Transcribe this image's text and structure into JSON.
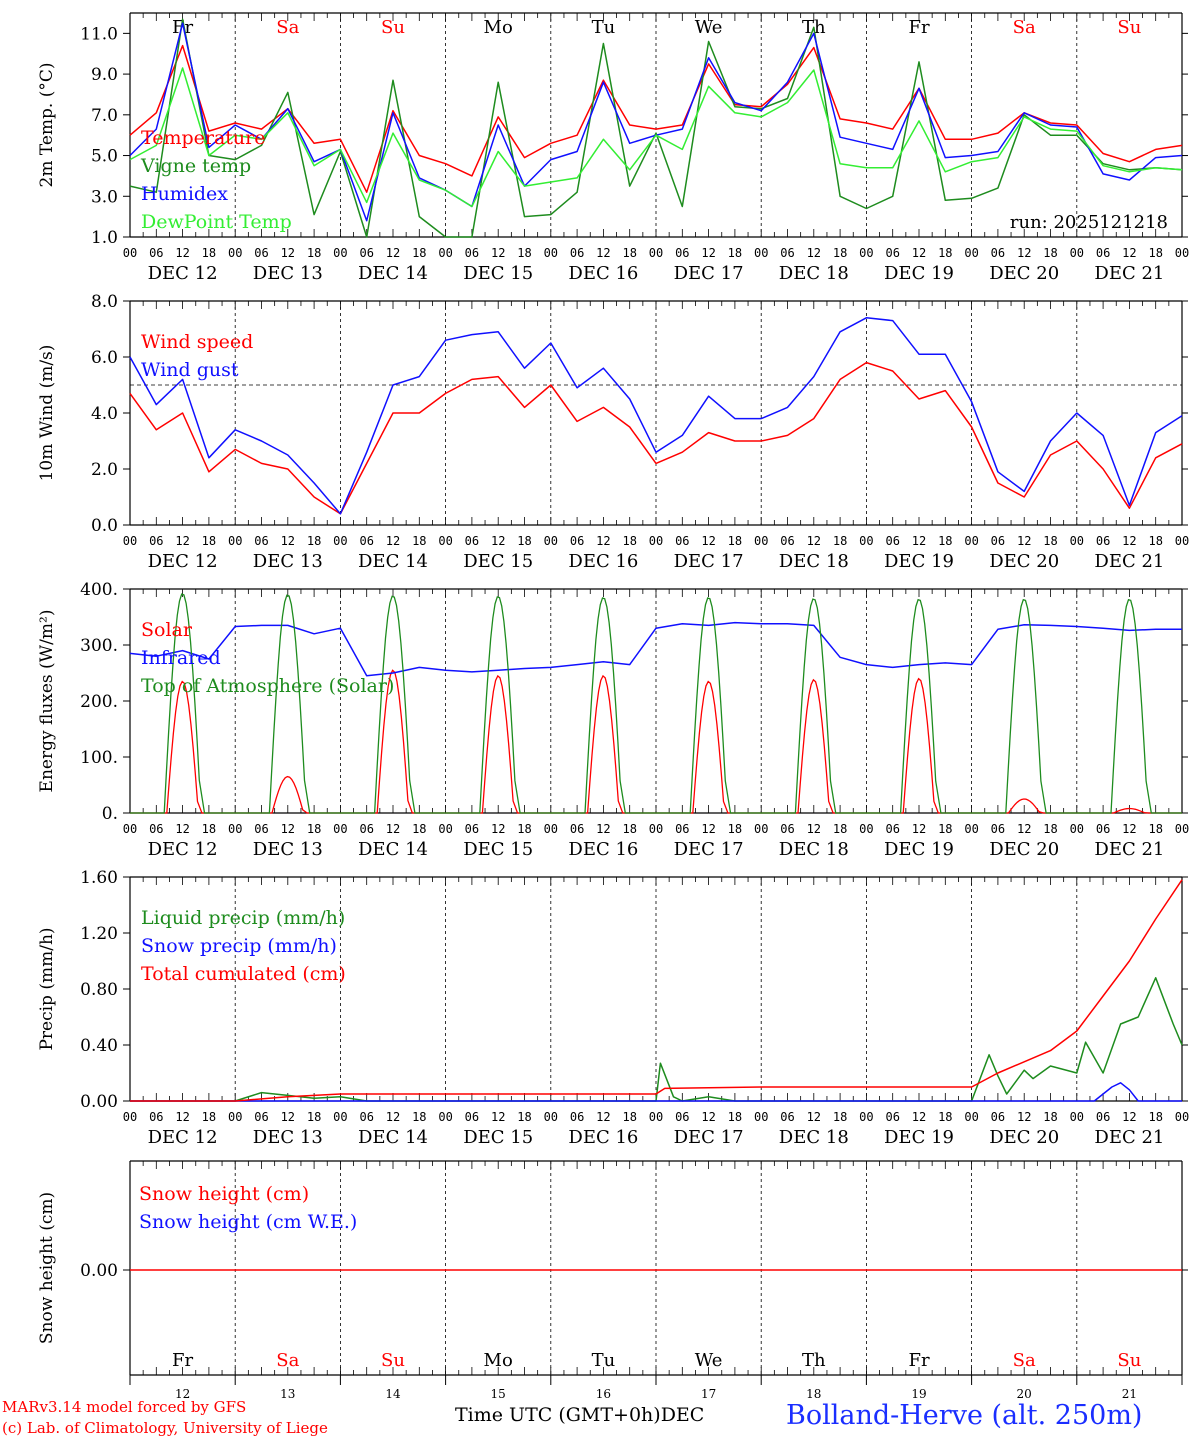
{
  "days": {
    "weekdays": [
      "Fr",
      "Sa",
      "Su",
      "Mo",
      "Tu",
      "We",
      "Th",
      "Fr",
      "Sa",
      "Su"
    ],
    "weekend": [
      false,
      true,
      true,
      false,
      false,
      false,
      false,
      false,
      true,
      true
    ],
    "dates": [
      "DEC 12",
      "DEC 13",
      "DEC 14",
      "DEC 15",
      "DEC 16",
      "DEC 17",
      "DEC 18",
      "DEC 19",
      "DEC 20",
      "DEC 21"
    ],
    "day_numbers": [
      "12",
      "13",
      "14",
      "15",
      "16",
      "17",
      "18",
      "19",
      "20",
      "21"
    ],
    "hour_ticks": [
      "00",
      "06",
      "12",
      "18"
    ],
    "final_hour": "00"
  },
  "colors": {
    "red": "#ff0000",
    "green": "#1e8c1e",
    "blue": "#1010ff",
    "lightgreen": "#33ee33",
    "text": "#000000"
  },
  "footer": {
    "credit_line1": "MARv3.14 model forced by GFS",
    "credit_line2": "(c) Lab. of Climatology, University of Liege",
    "time_label": "Time UTC (GMT+0h)",
    "month": "DEC",
    "station": "Bolland-Herve (alt. 250m)"
  },
  "chart_data": [
    {
      "type": "line",
      "ylabel": "2m Temp. (°C)",
      "ylim": [
        1.0,
        12.0
      ],
      "yticks": [
        "1.0",
        "3.0",
        "5.0",
        "7.0",
        "9.0",
        "11.0"
      ],
      "run_label": "run: 2025121218",
      "x_units": "hours from DEC 12 00 UTC",
      "series": [
        {
          "name": "Temperature",
          "color": "red",
          "x": [
            0,
            6,
            12,
            18,
            24,
            30,
            36,
            42,
            48,
            54,
            60,
            66,
            72,
            78,
            84,
            90,
            96,
            102,
            108,
            114,
            120,
            126,
            132,
            138,
            144,
            150,
            156,
            162,
            168,
            174,
            180,
            186,
            192,
            198,
            204,
            210,
            216,
            222,
            228,
            234,
            240
          ],
          "y": [
            6.0,
            7.1,
            10.4,
            6.2,
            6.6,
            6.3,
            7.3,
            5.6,
            5.8,
            3.2,
            7.2,
            5.0,
            4.6,
            4.0,
            6.9,
            4.9,
            5.6,
            6.0,
            8.7,
            6.5,
            6.3,
            6.5,
            9.5,
            7.5,
            7.4,
            8.5,
            10.3,
            6.8,
            6.6,
            6.3,
            8.3,
            5.8,
            5.8,
            6.1,
            7.1,
            6.6,
            6.5,
            5.1,
            4.7,
            5.3,
            5.5
          ]
        },
        {
          "name": "Vigne temp",
          "color": "green",
          "x": [
            0,
            6,
            12,
            18,
            24,
            30,
            36,
            42,
            48,
            54,
            60,
            66,
            72,
            78,
            84,
            90,
            96,
            102,
            108,
            114,
            120,
            126,
            132,
            138,
            144,
            150,
            156,
            162,
            168,
            174,
            180,
            186,
            192,
            198,
            204,
            210,
            216,
            222,
            228,
            234,
            240
          ],
          "y": [
            3.5,
            3.2,
            11.7,
            5.0,
            4.8,
            5.5,
            8.1,
            2.1,
            5.2,
            0.3,
            8.7,
            2.0,
            0.9,
            0.5,
            8.6,
            2.0,
            2.1,
            3.2,
            10.5,
            3.5,
            6.1,
            2.5,
            10.6,
            7.4,
            7.3,
            7.8,
            11.3,
            3.0,
            2.4,
            3.0,
            9.6,
            2.8,
            2.9,
            3.4,
            7.0,
            6.0,
            6.0,
            4.6,
            4.3,
            4.4,
            4.3
          ]
        },
        {
          "name": "Humidex",
          "color": "blue",
          "x": [
            0,
            6,
            12,
            18,
            24,
            30,
            36,
            42,
            48,
            54,
            60,
            66,
            72,
            78,
            84,
            90,
            96,
            102,
            108,
            114,
            120,
            126,
            132,
            138,
            144,
            150,
            156,
            162,
            168,
            174,
            180,
            186,
            192,
            198,
            204,
            210,
            216,
            222,
            228,
            234,
            240
          ],
          "y": [
            5.0,
            6.3,
            11.5,
            5.4,
            6.5,
            5.8,
            7.3,
            4.7,
            5.3,
            1.8,
            7.1,
            3.9,
            3.3,
            2.5,
            6.5,
            3.5,
            4.8,
            5.2,
            8.6,
            5.6,
            6.0,
            6.3,
            9.8,
            7.6,
            7.2,
            8.6,
            11.0,
            5.9,
            5.6,
            5.3,
            8.3,
            4.9,
            5.0,
            5.2,
            7.1,
            6.5,
            6.4,
            4.1,
            3.8,
            4.9,
            5.0
          ]
        },
        {
          "name": "DewPoint Temp",
          "color": "lightgreen",
          "x": [
            0,
            6,
            12,
            18,
            24,
            30,
            36,
            42,
            48,
            54,
            60,
            66,
            72,
            78,
            84,
            90,
            96,
            102,
            108,
            114,
            120,
            126,
            132,
            138,
            144,
            150,
            156,
            162,
            168,
            174,
            180,
            186,
            192,
            198,
            204,
            210,
            216,
            222,
            228,
            234,
            240
          ],
          "y": [
            4.8,
            5.5,
            9.3,
            5.0,
            6.0,
            5.8,
            7.1,
            4.5,
            5.3,
            2.7,
            6.1,
            3.8,
            3.3,
            2.5,
            5.2,
            3.5,
            3.7,
            3.9,
            5.8,
            4.3,
            6.0,
            5.3,
            8.4,
            7.1,
            6.9,
            7.6,
            9.2,
            4.6,
            4.4,
            4.4,
            6.7,
            4.2,
            4.7,
            4.9,
            6.9,
            6.3,
            6.2,
            4.5,
            4.2,
            4.4,
            4.3
          ]
        }
      ]
    },
    {
      "type": "line",
      "ylabel": "10m Wind (m/s)",
      "ylim": [
        0.0,
        8.0
      ],
      "yticks": [
        "0.0",
        "2.0",
        "4.0",
        "6.0",
        "8.0"
      ],
      "reference_line": 5.0,
      "series": [
        {
          "name": "Wind speed",
          "color": "red",
          "x": [
            0,
            6,
            12,
            18,
            24,
            30,
            36,
            42,
            48,
            54,
            60,
            66,
            72,
            78,
            84,
            90,
            96,
            102,
            108,
            114,
            120,
            126,
            132,
            138,
            144,
            150,
            156,
            162,
            168,
            174,
            180,
            186,
            192,
            198,
            204,
            210,
            216,
            222,
            228,
            234,
            240
          ],
          "y": [
            4.7,
            3.4,
            4.0,
            1.9,
            2.7,
            2.2,
            2.0,
            1.0,
            0.4,
            2.2,
            4.0,
            4.0,
            4.7,
            5.2,
            5.3,
            4.2,
            5.0,
            3.7,
            4.2,
            3.5,
            2.2,
            2.6,
            3.3,
            3.0,
            3.0,
            3.2,
            3.8,
            5.2,
            5.8,
            5.5,
            4.5,
            4.8,
            3.5,
            1.5,
            1.0,
            2.5,
            3.0,
            2.0,
            0.6,
            2.4,
            2.9
          ]
        },
        {
          "name": "Wind gust",
          "color": "blue",
          "x": [
            0,
            6,
            12,
            18,
            24,
            30,
            36,
            42,
            48,
            54,
            60,
            66,
            72,
            78,
            84,
            90,
            96,
            102,
            108,
            114,
            120,
            126,
            132,
            138,
            144,
            150,
            156,
            162,
            168,
            174,
            180,
            186,
            192,
            198,
            204,
            210,
            216,
            222,
            228,
            234,
            240
          ],
          "y": [
            6.0,
            4.3,
            5.2,
            2.4,
            3.4,
            3.0,
            2.5,
            1.5,
            0.4,
            2.6,
            5.0,
            5.3,
            6.6,
            6.8,
            6.9,
            5.6,
            6.5,
            4.9,
            5.6,
            4.5,
            2.6,
            3.2,
            4.6,
            3.8,
            3.8,
            4.2,
            5.3,
            6.9,
            7.4,
            7.3,
            6.1,
            6.1,
            4.4,
            1.9,
            1.2,
            3.0,
            4.0,
            3.2,
            0.7,
            3.3,
            3.9
          ]
        }
      ]
    },
    {
      "type": "line",
      "ylabel": "Energy fluxes (W/m²)",
      "ylim": [
        0,
        400
      ],
      "yticks": [
        "0.",
        "100.",
        "200.",
        "300.",
        "400."
      ],
      "series": [
        {
          "name": "Solar",
          "color": "red",
          "daily_peaks": [
            235,
            65,
            255,
            245,
            245,
            235,
            238,
            240,
            25,
            8
          ]
        },
        {
          "name": "Infrared",
          "color": "blue",
          "x": [
            0,
            6,
            12,
            18,
            24,
            30,
            36,
            42,
            48,
            54,
            60,
            66,
            72,
            78,
            84,
            90,
            96,
            102,
            108,
            114,
            120,
            126,
            132,
            138,
            144,
            150,
            156,
            162,
            168,
            174,
            180,
            186,
            192,
            198,
            204,
            210,
            216,
            222,
            228,
            234,
            240
          ],
          "y": [
            285,
            280,
            290,
            275,
            333,
            335,
            335,
            320,
            330,
            245,
            250,
            260,
            255,
            252,
            255,
            258,
            260,
            265,
            270,
            265,
            330,
            338,
            335,
            340,
            338,
            338,
            335,
            278,
            265,
            260,
            265,
            268,
            265,
            328,
            336,
            335,
            333,
            330,
            326,
            328,
            328
          ]
        },
        {
          "name": "Top of Atmosphere (Solar)",
          "color": "green",
          "daily_peaks": [
            392,
            390,
            388,
            387,
            385,
            385,
            383,
            382,
            382,
            382
          ]
        }
      ]
    },
    {
      "type": "line",
      "ylabel": "Precip (mm/h)",
      "ylim": [
        0.0,
        1.6
      ],
      "yticks": [
        "0.00",
        "0.40",
        "0.80",
        "1.20",
        "1.60"
      ],
      "series": [
        {
          "name": "Liquid precip (mm/h)",
          "color": "green",
          "x": [
            0,
            24,
            30,
            36,
            42,
            48,
            54,
            96,
            120,
            121,
            124,
            126,
            132,
            138,
            150,
            168,
            192,
            196,
            198,
            200,
            204,
            206,
            210,
            216,
            218,
            222,
            226,
            230,
            234,
            238,
            240
          ],
          "y": [
            0,
            0,
            0.06,
            0.04,
            0.02,
            0.03,
            0.0,
            0.0,
            0.0,
            0.27,
            0.03,
            0.0,
            0.03,
            0.0,
            0.0,
            0.0,
            0.0,
            0.33,
            0.18,
            0.05,
            0.22,
            0.16,
            0.25,
            0.2,
            0.42,
            0.2,
            0.55,
            0.6,
            0.88,
            0.55,
            0.4
          ]
        },
        {
          "name": "Snow precip (mm/h)",
          "color": "blue",
          "x": [
            0,
            220,
            224,
            226,
            228,
            230,
            240
          ],
          "y": [
            0,
            0,
            0.1,
            0.13,
            0.08,
            0.0,
            0.0
          ]
        },
        {
          "name": "Total cumulated (cm)",
          "color": "red",
          "x": [
            0,
            24,
            36,
            48,
            120,
            122,
            144,
            192,
            198,
            204,
            210,
            216,
            222,
            228,
            234,
            240
          ],
          "y": [
            0,
            0,
            0.03,
            0.05,
            0.05,
            0.09,
            0.1,
            0.1,
            0.2,
            0.28,
            0.36,
            0.5,
            0.75,
            1.0,
            1.3,
            1.58
          ]
        }
      ]
    },
    {
      "type": "line",
      "ylabel": "Snow height (cm)",
      "yticks": [
        "0.00"
      ],
      "series": [
        {
          "name": "Snow height (cm)",
          "color": "red",
          "y": [
            0.0
          ]
        },
        {
          "name": "Snow height (cm W.E.)",
          "color": "blue",
          "y": [
            0.0
          ]
        }
      ]
    }
  ]
}
